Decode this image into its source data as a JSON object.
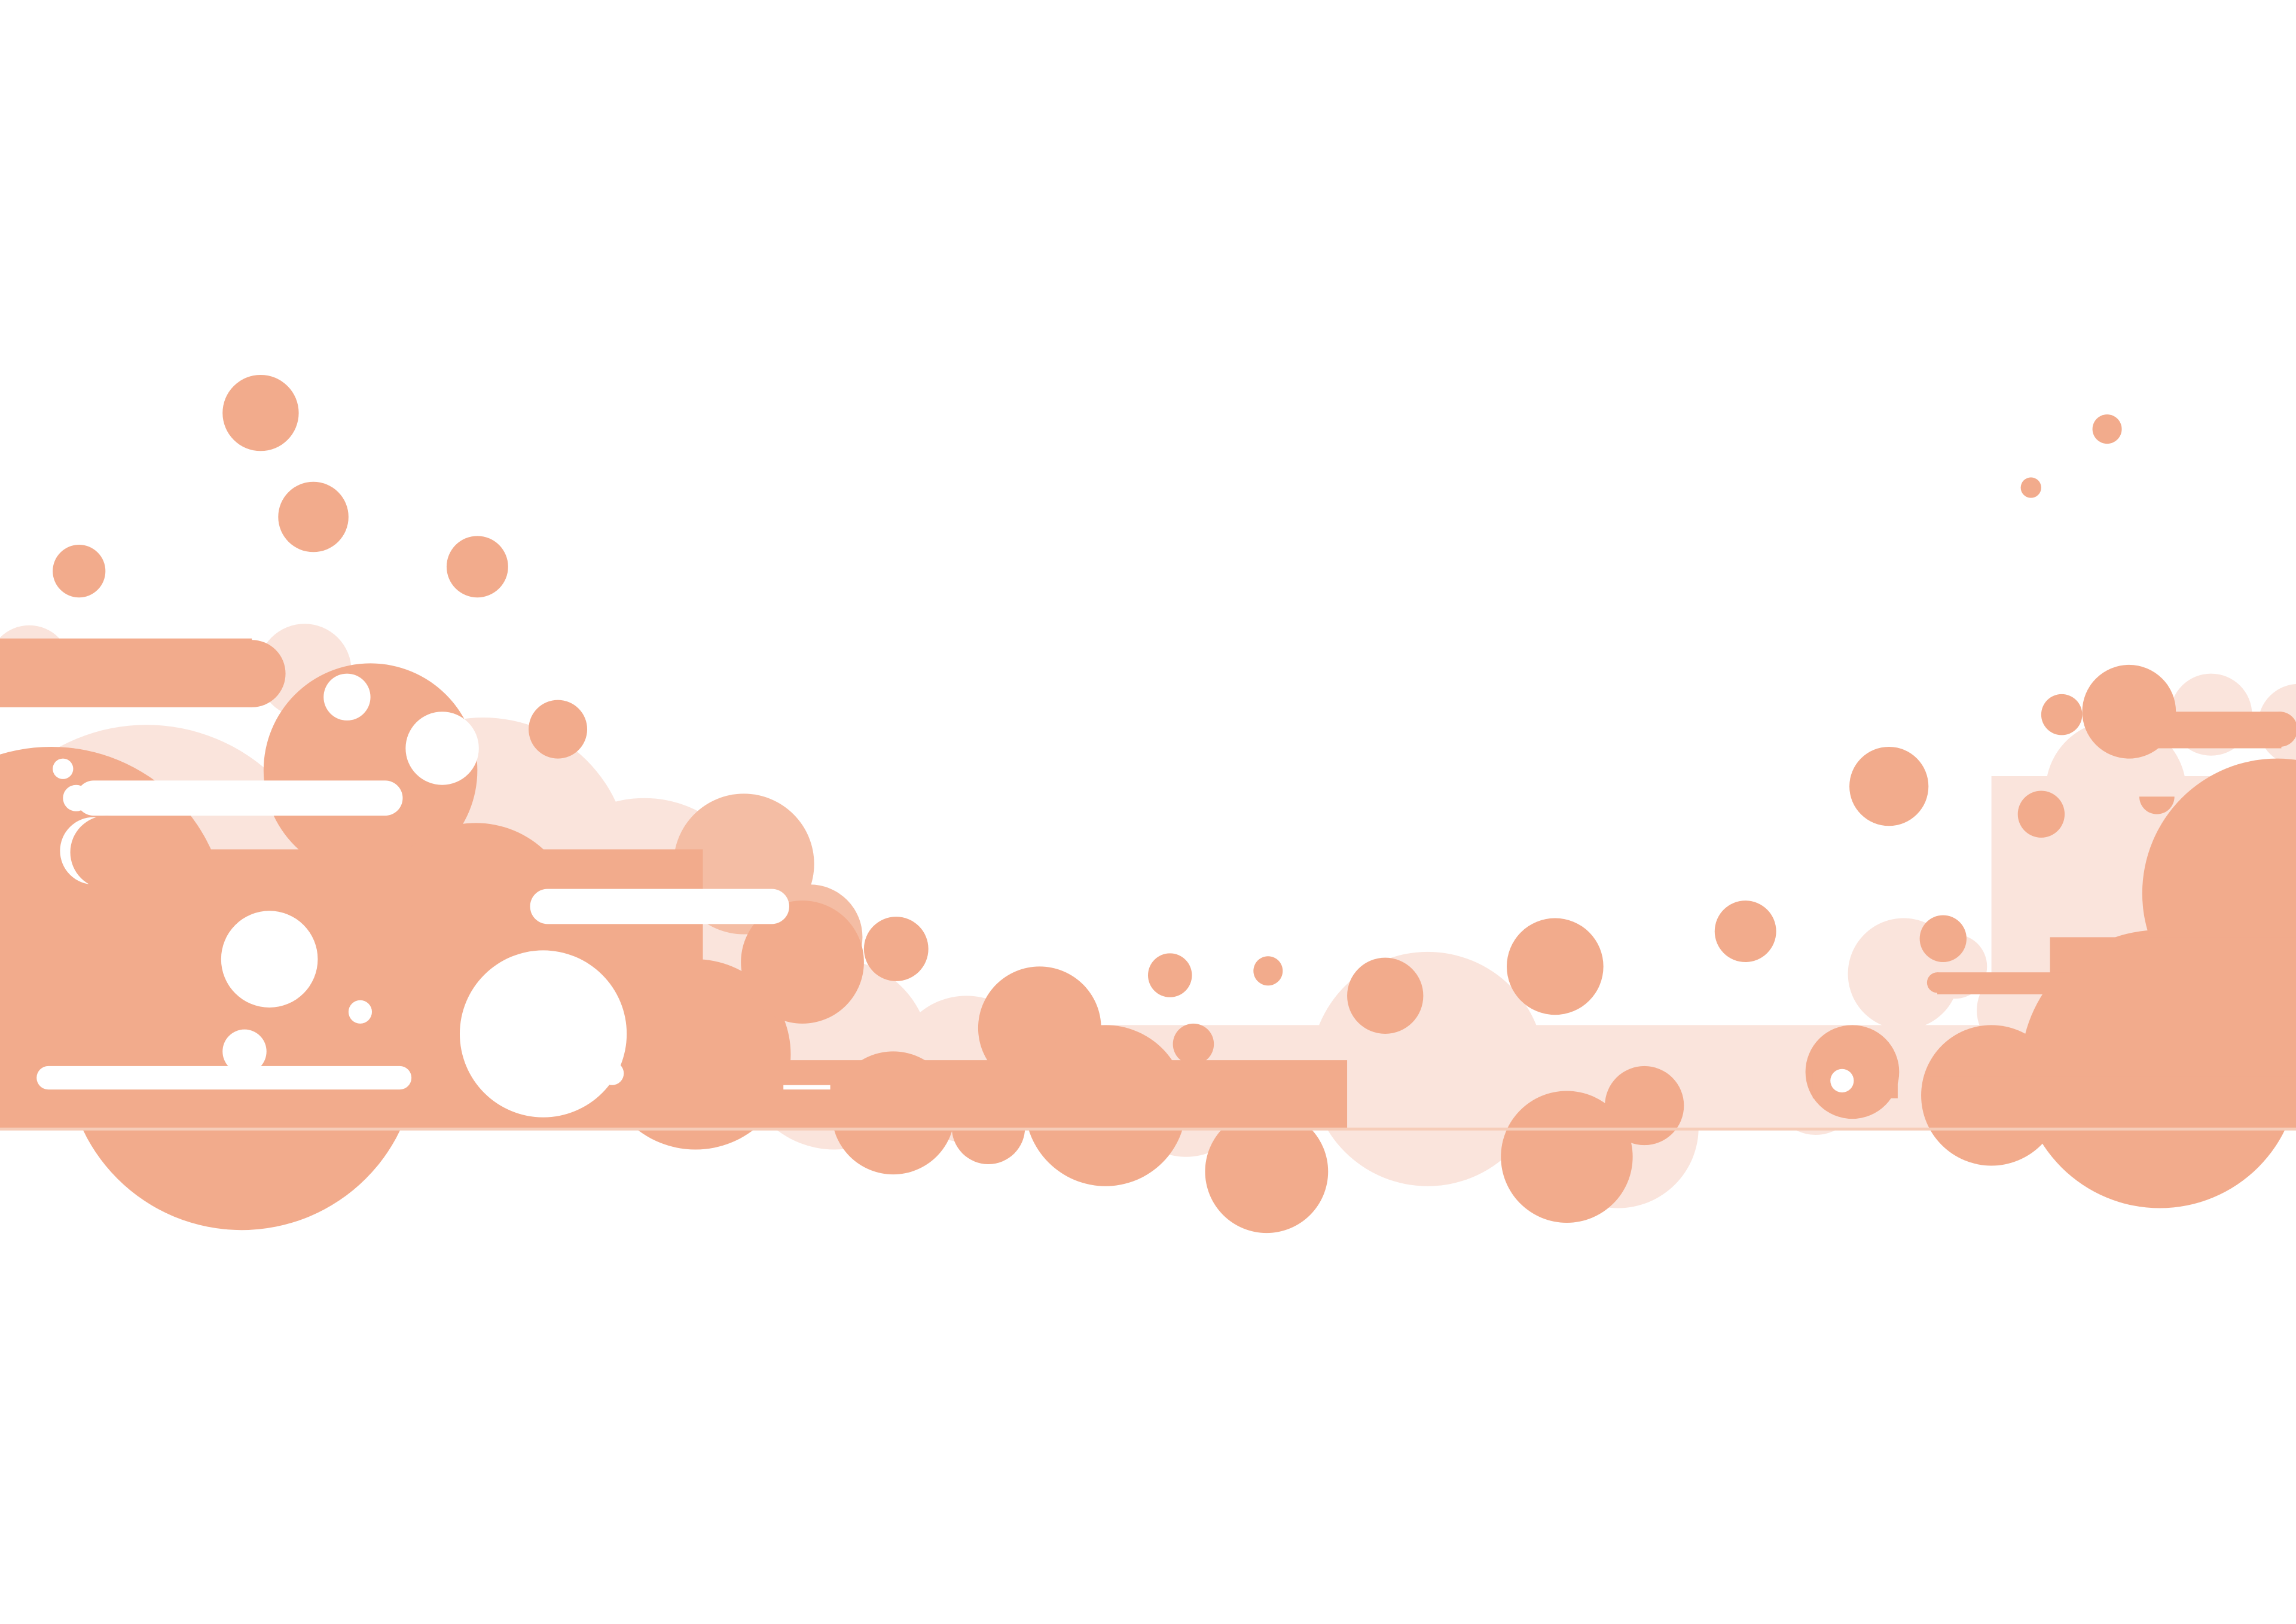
{
  "illustration": {
    "subject": "foam-bubbles-banner",
    "colors": {
      "background": "#ffffff",
      "bubble_dark": "#f2ab8c",
      "bubble_light": "#fae4dc",
      "bubble_mid": "#f4bda4",
      "highlight": "#ffffff"
    }
  }
}
